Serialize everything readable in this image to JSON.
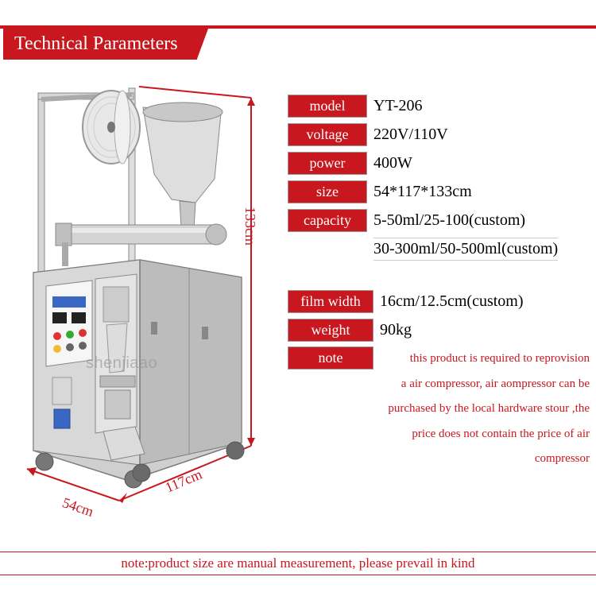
{
  "colors": {
    "accent": "#c8171e",
    "text": "#000000",
    "background": "#ffffff",
    "machine_body": "#cfcfcf",
    "machine_shadow": "#9a9a9a"
  },
  "header": {
    "title": "Technical Parameters"
  },
  "dimensions": {
    "height": "133cm",
    "depth": "117cm",
    "width": "54cm"
  },
  "watermark": "shenjiaao",
  "specs": [
    {
      "label": "model",
      "value": "YT-206",
      "label_width": 100
    },
    {
      "label": "voltage",
      "value": "220V/110V",
      "label_width": 100
    },
    {
      "label": "power",
      "value": "400W",
      "label_width": 100
    },
    {
      "label": "size",
      "value": "54*117*133cm",
      "label_width": 100
    },
    {
      "label": "capacity",
      "value": "5-50ml/25-100(custom)",
      "label_width": 100
    },
    {
      "label": "",
      "value": "30-300ml/50-500ml(custom)",
      "label_width": 100,
      "value_only": true
    }
  ],
  "specs2": [
    {
      "label": "film width",
      "value": "16cm/12.5cm(custom)",
      "label_width": 108
    },
    {
      "label": "weight",
      "value": "90kg",
      "label_width": 108
    },
    {
      "label": "note",
      "value": "",
      "label_width": 108,
      "is_note": true
    }
  ],
  "note_lines": [
    "this product is required to reprovision",
    "a air compressor, air aompressor can be",
    "purchased by the local hardware stour ,the",
    "price does not contain the price of air compressor"
  ],
  "footer": "note:product size are manual measurement, please prevail in kind"
}
